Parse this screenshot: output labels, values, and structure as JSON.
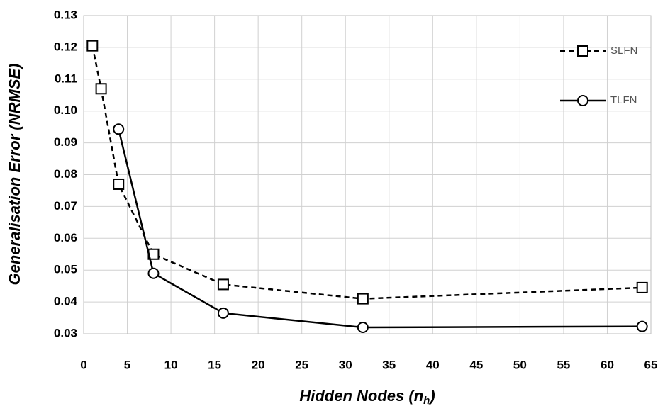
{
  "chart_data": {
    "type": "line",
    "xlabel": [
      "Hidden Nodes (n",
      "h",
      ")"
    ],
    "ylabel": "Generalisation Error (NRMSE)",
    "xlim": [
      0,
      65
    ],
    "xticks": [
      0,
      5,
      10,
      15,
      20,
      25,
      30,
      35,
      40,
      45,
      50,
      55,
      60,
      65
    ],
    "ylim": [
      0.03,
      0.13
    ],
    "yticks": [
      0.03,
      0.04,
      0.05,
      0.06,
      0.07,
      0.08,
      0.09,
      {
        "value": 0.1,
        "label": "0.10"
      },
      0.11,
      0.12,
      0.13
    ],
    "grid": true,
    "legend": "upper right",
    "series": [
      {
        "name": "SLFN",
        "color": "#000000",
        "dash": true,
        "marker": "square",
        "x": [
          1,
          2,
          4,
          8,
          16,
          32,
          64
        ],
        "values": [
          0.1205,
          0.107,
          0.077,
          0.055,
          0.0455,
          0.041,
          0.0445
        ]
      },
      {
        "name": "TLFN",
        "color": "#000000",
        "dash": false,
        "marker": "circle",
        "x": [
          4,
          8,
          16,
          32,
          64
        ],
        "values": [
          0.0943,
          0.049,
          0.0365,
          0.032,
          0.0323
        ]
      }
    ]
  }
}
